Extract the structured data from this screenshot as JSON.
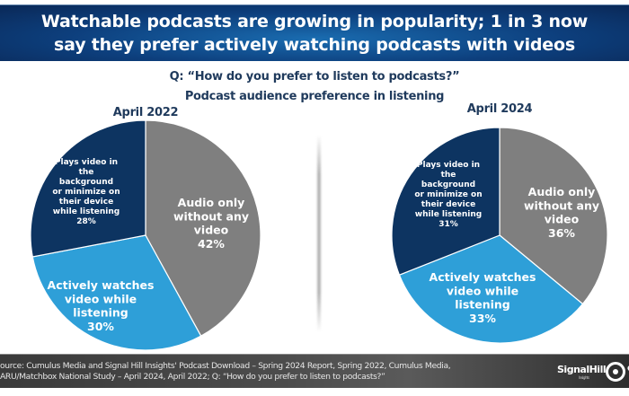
{
  "header": {
    "title_line1": "Watchable podcasts are growing in popularity; 1 in 3 now",
    "title_line2": "say they prefer actively watching podcasts with videos"
  },
  "question": "Q: “How do you prefer to listen to podcasts?”",
  "subtitle": "Podcast audience preference in listening",
  "colors": {
    "audio_only": "#7f7f7f",
    "actively_watches": "#2e9fd8",
    "plays_background": "#0d3461"
  },
  "chart_data": [
    {
      "type": "pie",
      "title": "April 2022",
      "start_angle": "12 o'clock, clockwise",
      "slices": [
        {
          "key": "audio_only",
          "label_lines": [
            "Audio only",
            "without any",
            "video"
          ],
          "value": 42,
          "value_label": "42%"
        },
        {
          "key": "actively_watches",
          "label_lines": [
            "Actively watches",
            "video while",
            "listening"
          ],
          "value": 30,
          "value_label": "30%"
        },
        {
          "key": "plays_background",
          "label_lines": [
            "Plays video in",
            "the",
            "background",
            "or minimize on",
            "their device",
            "while listening"
          ],
          "value": 28,
          "value_label": "28%"
        }
      ]
    },
    {
      "type": "pie",
      "title": "April 2024",
      "start_angle": "12 o'clock, clockwise",
      "slices": [
        {
          "key": "audio_only",
          "label_lines": [
            "Audio only",
            "without any",
            "video"
          ],
          "value": 36,
          "value_label": "36%"
        },
        {
          "key": "actively_watches",
          "label_lines": [
            "Actively watches",
            "video while",
            "listening"
          ],
          "value": 33,
          "value_label": "33%"
        },
        {
          "key": "plays_background",
          "label_lines": [
            "Plays video in",
            "the",
            "background",
            "or minimize on",
            "their device",
            "while listening"
          ],
          "value": 31,
          "value_label": "31%"
        }
      ]
    }
  ],
  "footer": {
    "source_line1": "ource: Cumulus Media and Signal Hill Insights' Podcast Download – Spring 2024 Report, Spring 2022, Cumulus Media,",
    "source_line2": "ARU/Matchbox National Study – April 2024, April 2022; Q: “How do you prefer to listen to podcasts?”",
    "logo_signalhill": "SignalHill",
    "logo_signalhill_sub": "Insights",
    "logo_cumulus": "CU"
  }
}
